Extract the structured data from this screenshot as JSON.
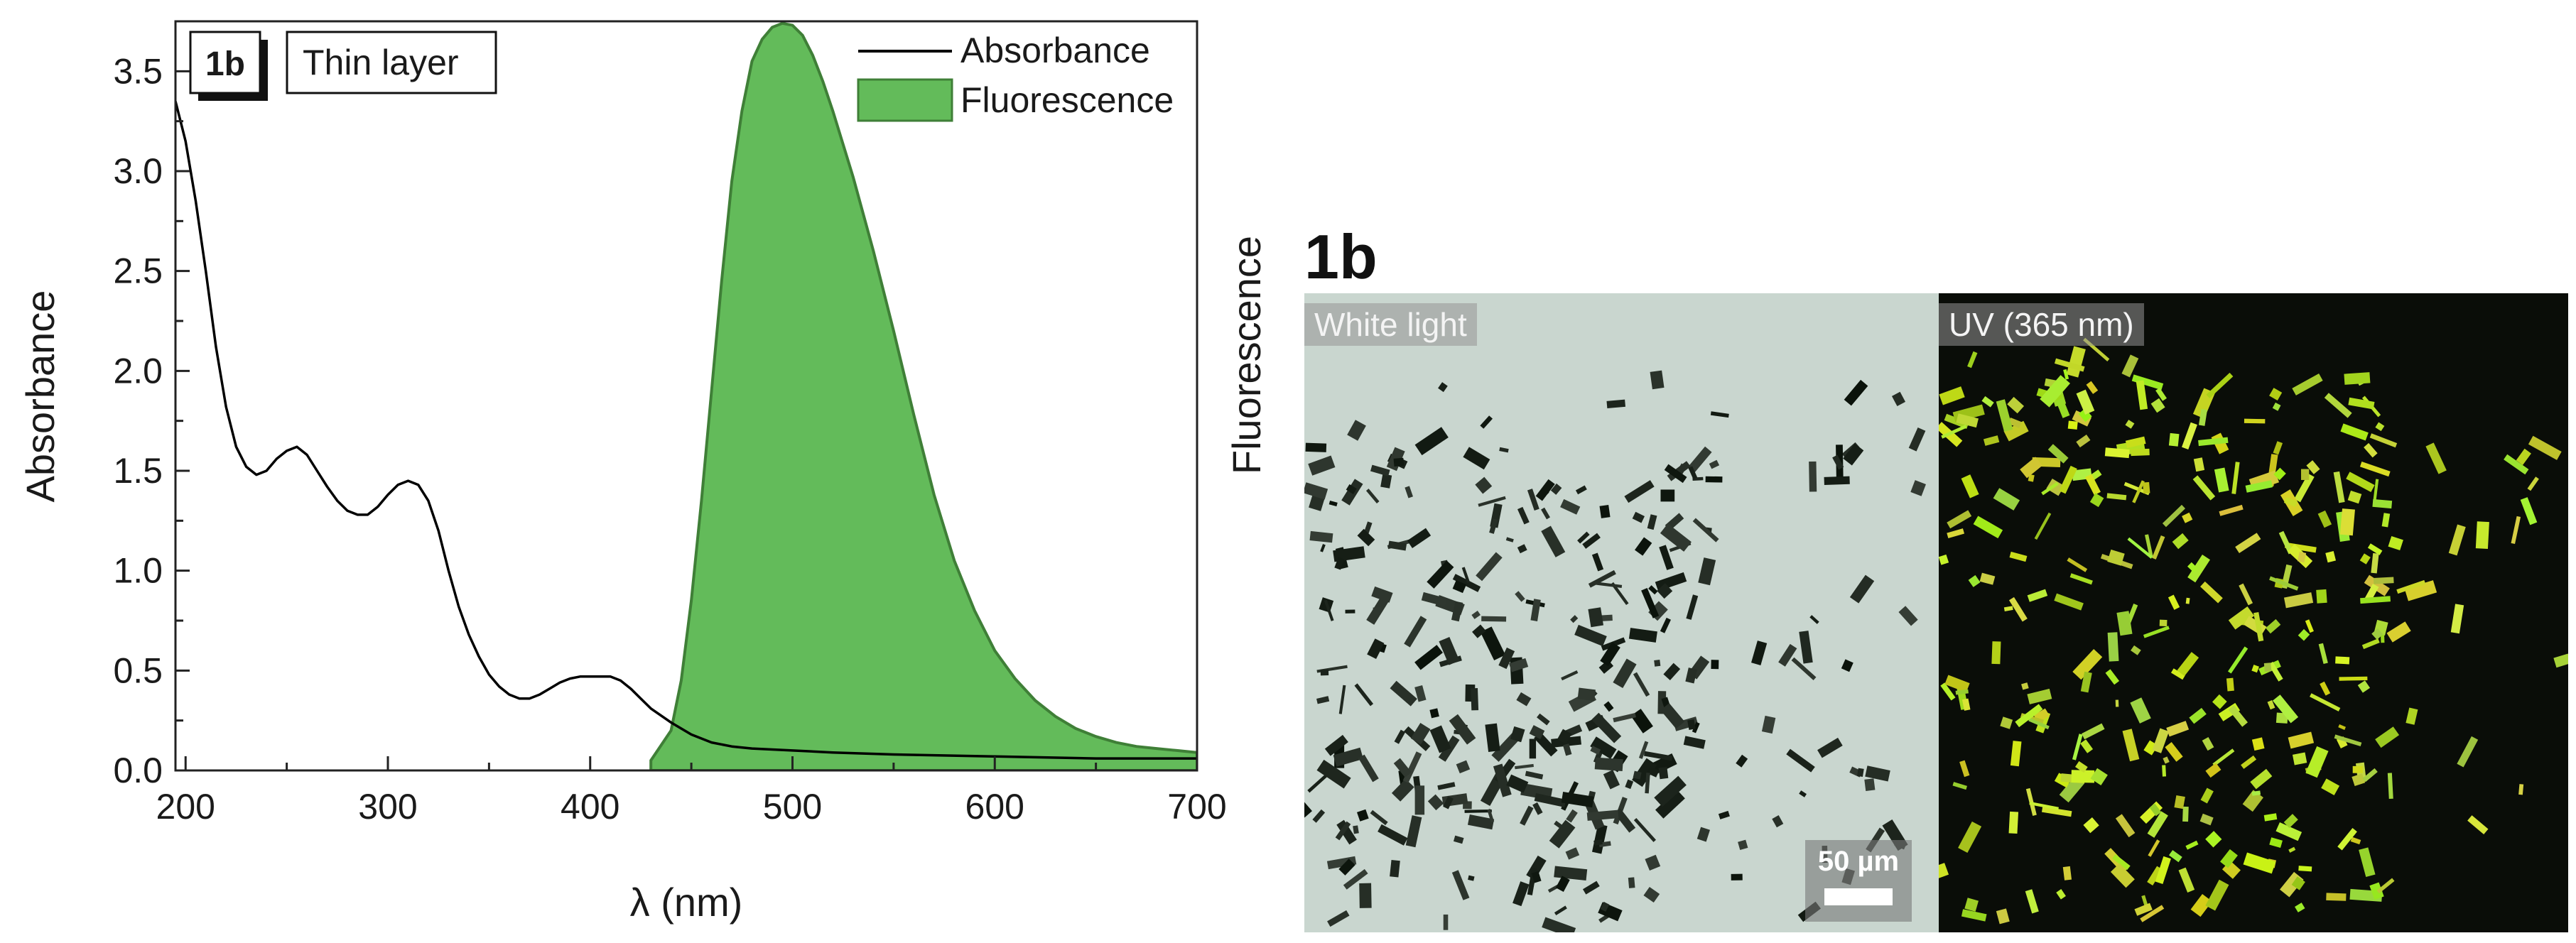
{
  "chart_data": {
    "type": "area",
    "panel_label": "1b",
    "condition_label": "Thin layer",
    "xlabel": "λ (nm)",
    "ylabel": "Absorbance",
    "right_ylabel": "Fluorescence",
    "xlim": [
      195,
      700
    ],
    "ylim": [
      0,
      3.75
    ],
    "x_ticks": [
      200,
      300,
      400,
      500,
      600,
      700
    ],
    "y_ticks": [
      "0.0",
      "0.5",
      "1.0",
      "1.5",
      "2.0",
      "2.5",
      "3.0",
      "3.5"
    ],
    "legend_position": "top-right",
    "grid": false,
    "series": [
      {
        "name": "Absorbance",
        "style": "line",
        "color": "#000000",
        "x": [
          195,
          200,
          205,
          210,
          215,
          220,
          225,
          230,
          235,
          240,
          245,
          250,
          255,
          260,
          265,
          270,
          275,
          280,
          285,
          290,
          295,
          300,
          305,
          310,
          315,
          320,
          325,
          330,
          335,
          340,
          345,
          350,
          355,
          360,
          365,
          370,
          375,
          380,
          385,
          390,
          395,
          400,
          405,
          410,
          415,
          420,
          425,
          430,
          440,
          450,
          460,
          470,
          480,
          500,
          520,
          550,
          600,
          650,
          700
        ],
        "y": [
          3.35,
          3.15,
          2.85,
          2.5,
          2.12,
          1.82,
          1.62,
          1.52,
          1.48,
          1.5,
          1.56,
          1.6,
          1.62,
          1.58,
          1.5,
          1.42,
          1.35,
          1.3,
          1.28,
          1.28,
          1.32,
          1.38,
          1.43,
          1.45,
          1.43,
          1.35,
          1.2,
          1.0,
          0.82,
          0.68,
          0.57,
          0.48,
          0.42,
          0.38,
          0.36,
          0.36,
          0.38,
          0.41,
          0.44,
          0.46,
          0.47,
          0.47,
          0.47,
          0.47,
          0.45,
          0.41,
          0.36,
          0.31,
          0.24,
          0.18,
          0.14,
          0.12,
          0.11,
          0.1,
          0.09,
          0.08,
          0.07,
          0.06,
          0.06
        ]
      },
      {
        "name": "Fluorescence",
        "style": "filled-area",
        "color": "#63bb5a",
        "edge_color": "#3f7f37",
        "x": [
          430,
          440,
          445,
          450,
          455,
          460,
          465,
          470,
          475,
          480,
          485,
          490,
          495,
          500,
          505,
          510,
          515,
          520,
          530,
          540,
          550,
          560,
          570,
          580,
          590,
          600,
          610,
          620,
          630,
          640,
          650,
          660,
          670,
          680,
          690,
          700
        ],
        "y": [
          0.05,
          0.2,
          0.45,
          0.85,
          1.35,
          1.9,
          2.45,
          2.95,
          3.3,
          3.55,
          3.66,
          3.72,
          3.74,
          3.73,
          3.68,
          3.58,
          3.45,
          3.3,
          2.97,
          2.6,
          2.2,
          1.78,
          1.38,
          1.05,
          0.8,
          0.6,
          0.46,
          0.35,
          0.27,
          0.21,
          0.17,
          0.14,
          0.12,
          0.11,
          0.1,
          0.09
        ]
      }
    ]
  },
  "micrograph": {
    "panel_label": "1b",
    "white_label": "White light",
    "uv_label": "UV (365 nm)",
    "scale_bar": "50 µm"
  }
}
